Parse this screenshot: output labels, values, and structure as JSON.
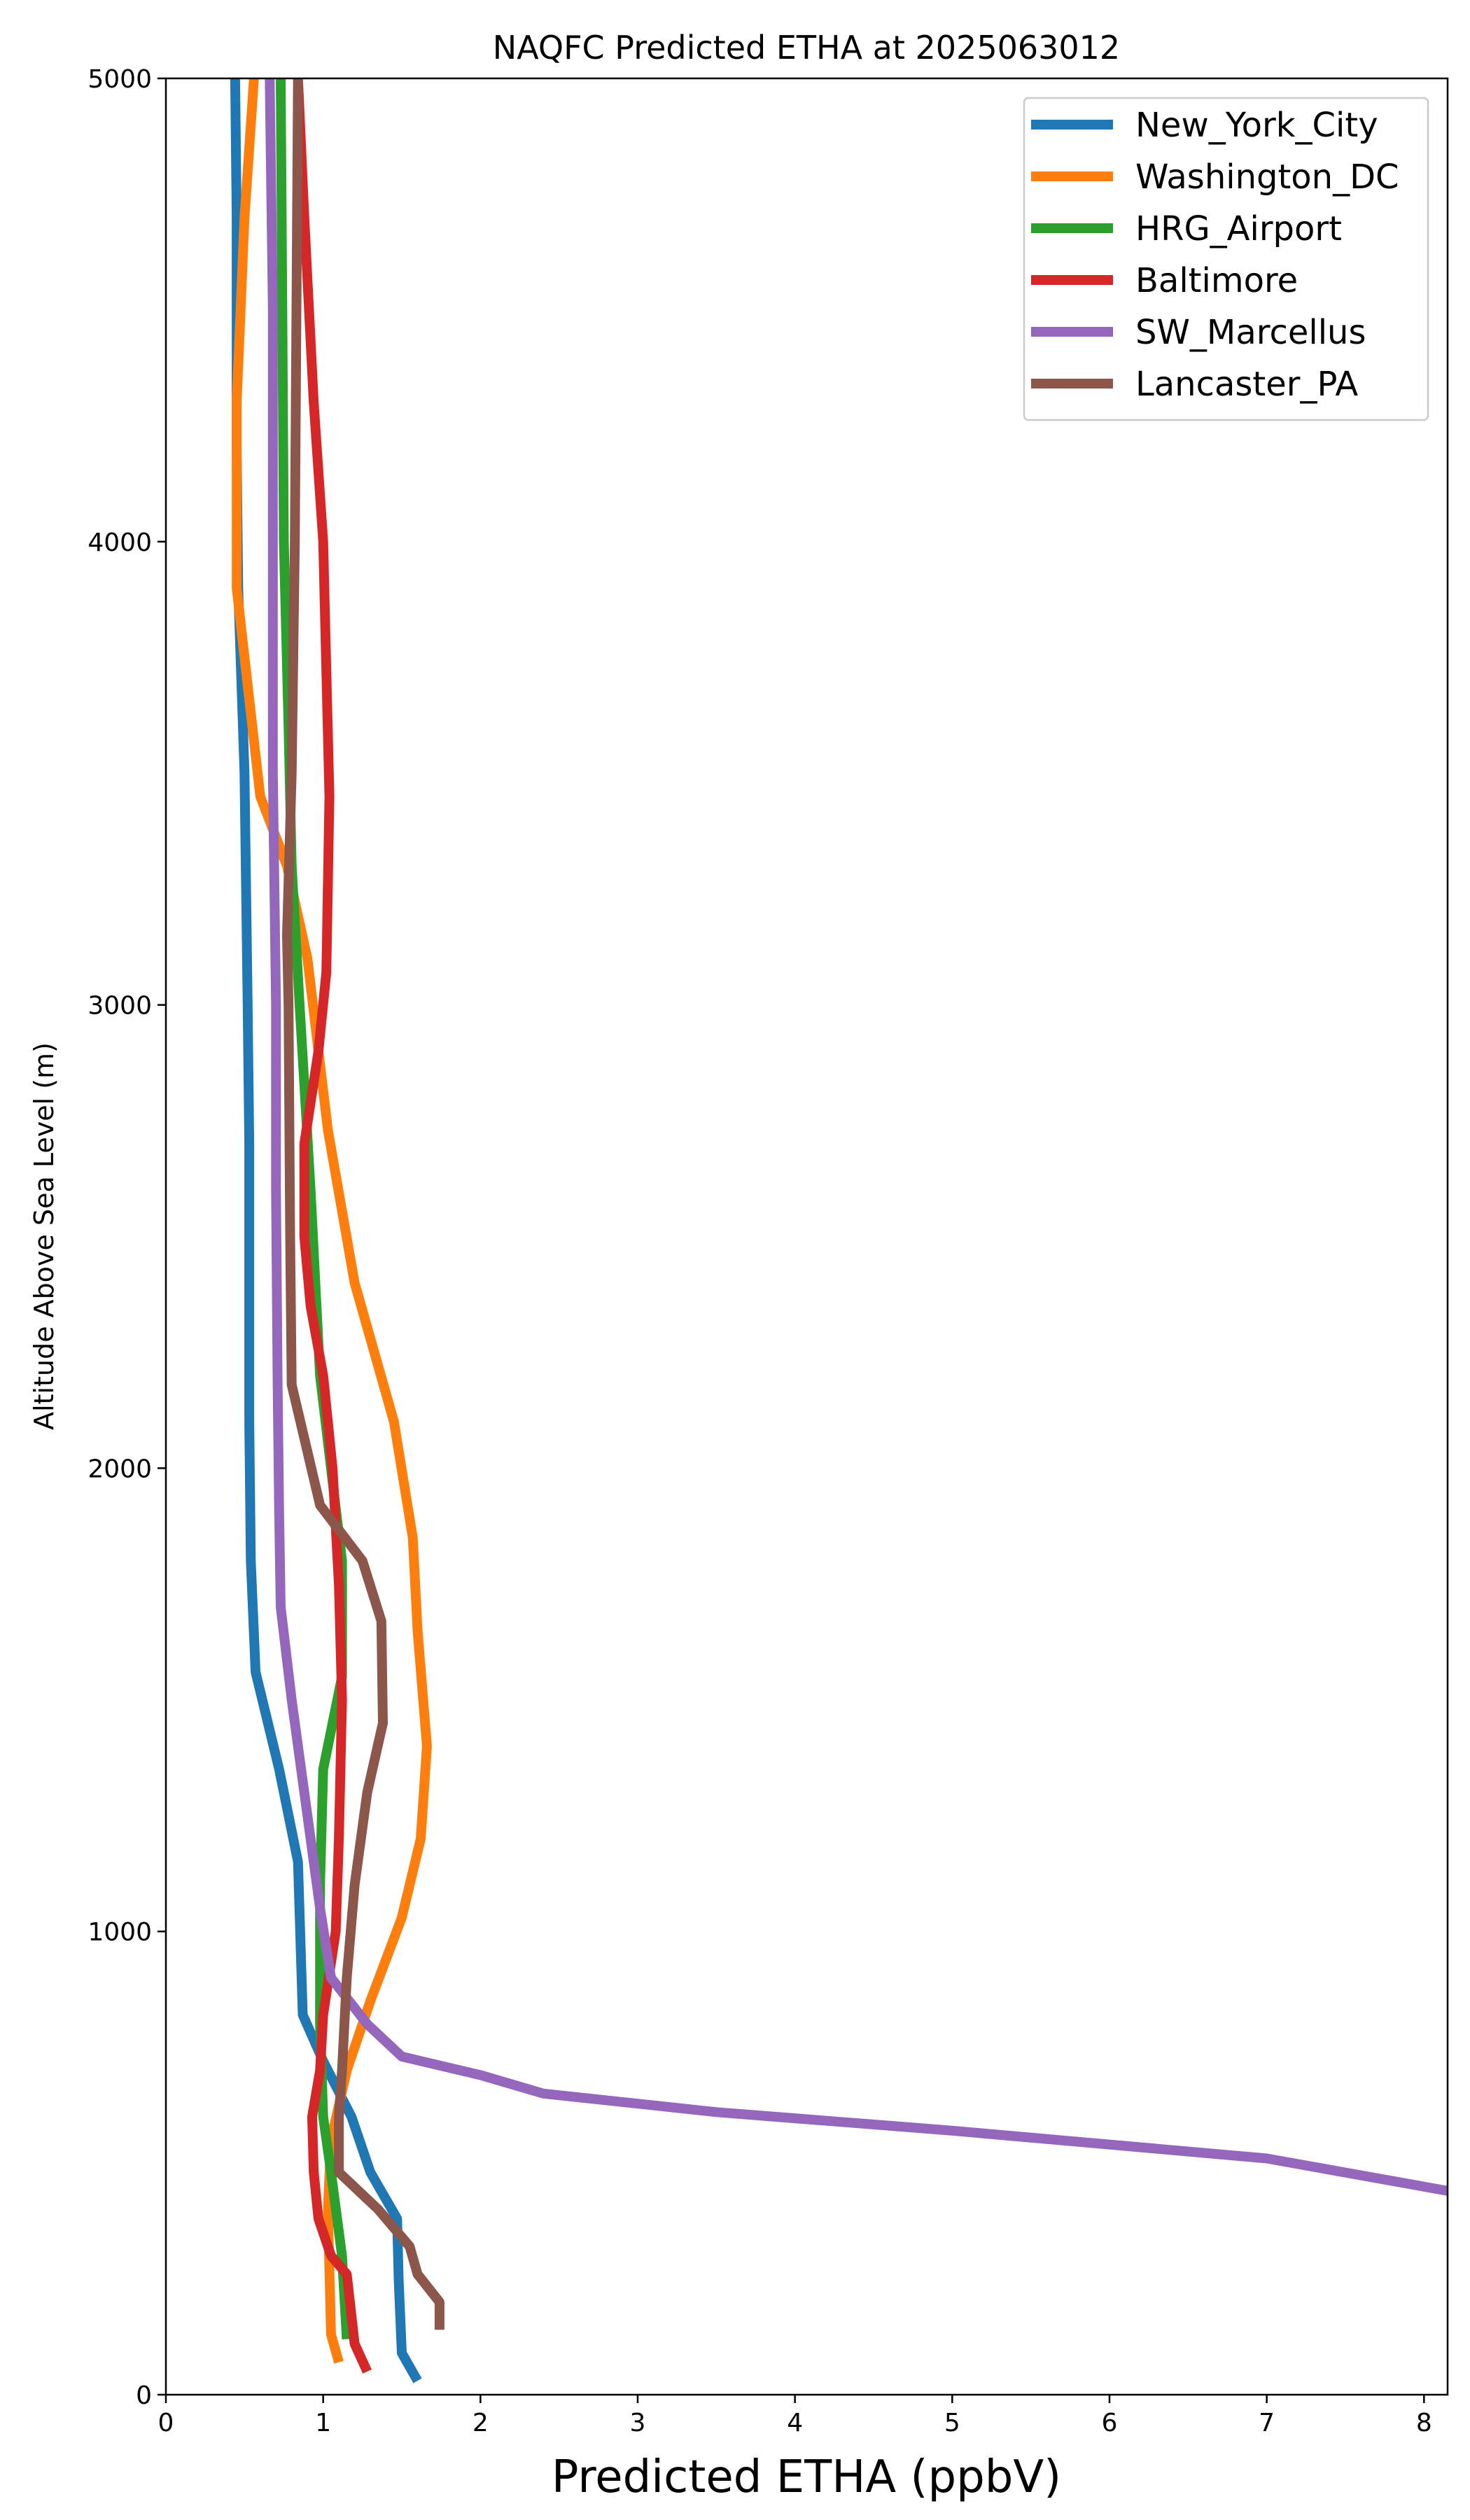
{
  "chart_data": {
    "type": "line",
    "title": "NAQFC Predicted ETHA at 2025063012",
    "xlabel": "Predicted ETHA (ppbV)",
    "ylabel": "Altitude Above Sea Level (m)",
    "xlim": [
      0,
      8.15
    ],
    "ylim": [
      0,
      5000
    ],
    "xticks": [
      "0",
      "1",
      "2",
      "3",
      "4",
      "5",
      "6",
      "7",
      "8"
    ],
    "yticks": [
      "0",
      "1000",
      "2000",
      "3000",
      "4000",
      "5000"
    ],
    "grid": false,
    "legend_position": "top-right",
    "series": [
      {
        "name": "New_York_City",
        "color": "#1f77b4",
        "points": [
          [
            1.6,
            30
          ],
          [
            1.5,
            90
          ],
          [
            1.48,
            250
          ],
          [
            1.47,
            380
          ],
          [
            1.3,
            480
          ],
          [
            1.18,
            600
          ],
          [
            1.0,
            720
          ],
          [
            0.87,
            820
          ],
          [
            0.84,
            1150
          ],
          [
            0.72,
            1350
          ],
          [
            0.57,
            1560
          ],
          [
            0.54,
            1800
          ],
          [
            0.53,
            2100
          ],
          [
            0.53,
            2700
          ],
          [
            0.52,
            3000
          ],
          [
            0.5,
            3500
          ],
          [
            0.46,
            3900
          ],
          [
            0.45,
            4200
          ],
          [
            0.45,
            4700
          ],
          [
            0.44,
            5000
          ]
        ]
      },
      {
        "name": "Washington_DC",
        "color": "#ff7f0e",
        "points": [
          [
            1.1,
            70
          ],
          [
            1.05,
            130
          ],
          [
            1.03,
            400
          ],
          [
            1.05,
            550
          ],
          [
            1.15,
            700
          ],
          [
            1.3,
            850
          ],
          [
            1.5,
            1030
          ],
          [
            1.62,
            1200
          ],
          [
            1.66,
            1400
          ],
          [
            1.6,
            1650
          ],
          [
            1.57,
            1850
          ],
          [
            1.45,
            2100
          ],
          [
            1.2,
            2400
          ],
          [
            1.03,
            2730
          ],
          [
            0.9,
            3100
          ],
          [
            0.77,
            3300
          ],
          [
            0.6,
            3450
          ],
          [
            0.45,
            3900
          ],
          [
            0.45,
            4300
          ],
          [
            0.5,
            4700
          ],
          [
            0.56,
            5000
          ]
        ]
      },
      {
        "name": "HRG_Airport",
        "color": "#2ca02c",
        "points": [
          [
            1.15,
            120
          ],
          [
            1.12,
            300
          ],
          [
            1.05,
            480
          ],
          [
            1.0,
            600
          ],
          [
            0.98,
            800
          ],
          [
            0.98,
            1100
          ],
          [
            1.0,
            1350
          ],
          [
            1.12,
            1550
          ],
          [
            1.12,
            1800
          ],
          [
            1.05,
            2000
          ],
          [
            0.98,
            2200
          ],
          [
            0.92,
            2600
          ],
          [
            0.85,
            3000
          ],
          [
            0.8,
            3300
          ],
          [
            0.78,
            3600
          ],
          [
            0.75,
            4000
          ],
          [
            0.74,
            4500
          ],
          [
            0.73,
            5000
          ]
        ]
      },
      {
        "name": "Baltimore",
        "color": "#d62728",
        "points": [
          [
            1.28,
            50
          ],
          [
            1.2,
            110
          ],
          [
            1.15,
            260
          ],
          [
            1.05,
            300
          ],
          [
            0.97,
            380
          ],
          [
            0.94,
            480
          ],
          [
            0.93,
            600
          ],
          [
            0.98,
            700
          ],
          [
            1.0,
            820
          ],
          [
            1.08,
            1000
          ],
          [
            1.1,
            1200
          ],
          [
            1.12,
            1500
          ],
          [
            1.1,
            1750
          ],
          [
            1.06,
            2000
          ],
          [
            1.0,
            2200
          ],
          [
            0.92,
            2350
          ],
          [
            0.88,
            2500
          ],
          [
            0.88,
            2700
          ],
          [
            0.97,
            2900
          ],
          [
            1.02,
            3070
          ],
          [
            1.04,
            3450
          ],
          [
            1.0,
            4000
          ],
          [
            0.94,
            4300
          ],
          [
            0.88,
            4700
          ],
          [
            0.84,
            5000
          ]
        ]
      },
      {
        "name": "SW_Marcellus",
        "color": "#9467bd",
        "points": [
          [
            8.15,
            440
          ],
          [
            7.0,
            510
          ],
          [
            5.0,
            570
          ],
          [
            3.5,
            610
          ],
          [
            2.4,
            650
          ],
          [
            2.0,
            690
          ],
          [
            1.5,
            730
          ],
          [
            1.28,
            800
          ],
          [
            1.05,
            900
          ],
          [
            0.98,
            1050
          ],
          [
            0.9,
            1250
          ],
          [
            0.84,
            1400
          ],
          [
            0.8,
            1500
          ],
          [
            0.73,
            1700
          ],
          [
            0.72,
            1900
          ],
          [
            0.71,
            2200
          ],
          [
            0.7,
            2600
          ],
          [
            0.7,
            3000
          ],
          [
            0.68,
            3500
          ],
          [
            0.68,
            4000
          ],
          [
            0.68,
            4500
          ],
          [
            0.66,
            5000
          ]
        ]
      },
      {
        "name": "Lancaster_PA",
        "color": "#8c564b",
        "points": [
          [
            1.74,
            140
          ],
          [
            1.74,
            200
          ],
          [
            1.6,
            260
          ],
          [
            1.55,
            320
          ],
          [
            1.35,
            400
          ],
          [
            1.1,
            480
          ],
          [
            1.1,
            600
          ],
          [
            1.12,
            700
          ],
          [
            1.15,
            900
          ],
          [
            1.2,
            1100
          ],
          [
            1.28,
            1300
          ],
          [
            1.38,
            1450
          ],
          [
            1.37,
            1670
          ],
          [
            1.25,
            1800
          ],
          [
            0.98,
            1920
          ],
          [
            0.8,
            2180
          ],
          [
            0.79,
            2500
          ],
          [
            0.78,
            3000
          ],
          [
            0.77,
            3150
          ],
          [
            0.8,
            3500
          ],
          [
            0.82,
            4000
          ],
          [
            0.83,
            4500
          ],
          [
            0.84,
            5000
          ]
        ]
      }
    ]
  }
}
